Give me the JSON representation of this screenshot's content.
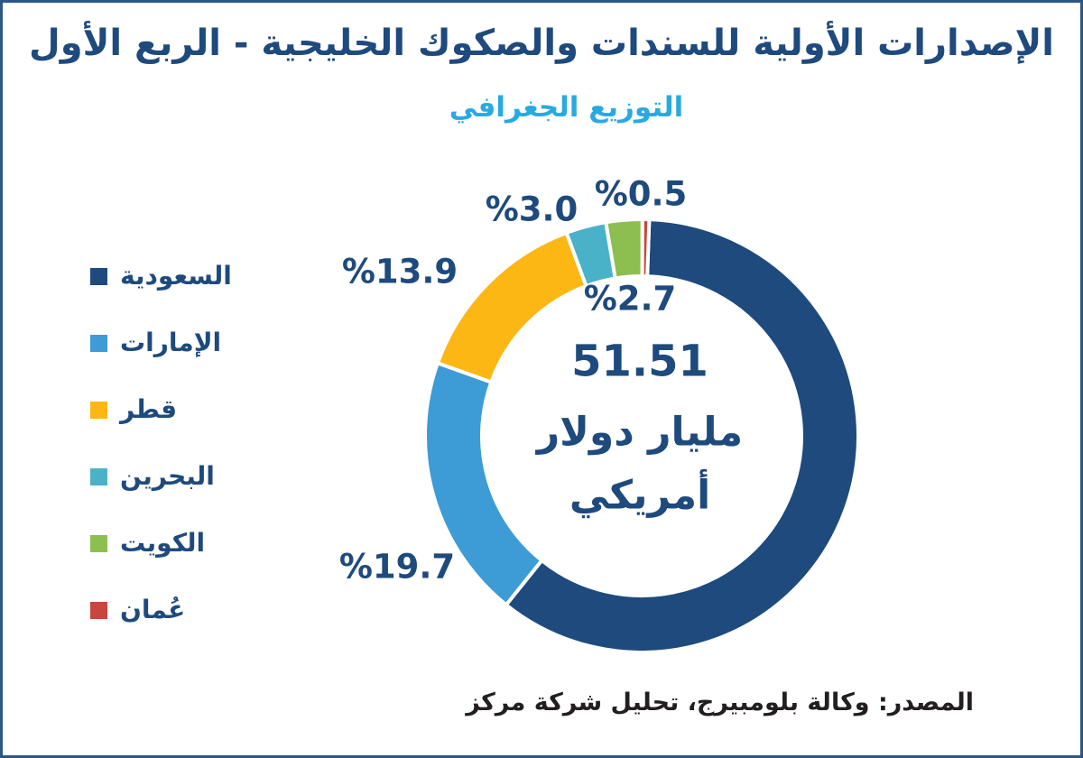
{
  "header": {
    "title": "الإصدارات الأولية للسندات والصكوك الخليجية - الربع الأول",
    "subtitle": "التوزيع الجغرافي"
  },
  "colors": {
    "title": "#1e4a7d",
    "subtitle": "#29a9e1",
    "percent_labels": "#1e4a7d",
    "frame_border": "#2b5685",
    "source_text": "#231f20",
    "slice_gap": "#ffffff"
  },
  "chart_data": {
    "type": "pie",
    "variant": "donut",
    "title": "الإصدارات الأولية للسندات والصكوك الخليجية - الربع الأول",
    "subtitle": "التوزيع الجغرافي",
    "unit": "percent",
    "legend_position": "left",
    "clockwise": true,
    "start_angle_deg": 2,
    "slices": [
      {
        "name": "السعودية",
        "name_en": "saudi-arabia",
        "value": 60.2,
        "label": "",
        "label_visible": false,
        "color": "#1e4a7d"
      },
      {
        "name": "الإمارات",
        "name_en": "uae",
        "value": 19.7,
        "label": "%19.7",
        "label_visible": true,
        "color": "#3d9bd5"
      },
      {
        "name": "قطر",
        "name_en": "qatar",
        "value": 13.9,
        "label": "%13.9",
        "label_visible": true,
        "color": "#fdb714"
      },
      {
        "name": "البحرين",
        "name_en": "bahrain",
        "value": 3.0,
        "label": "%3.0",
        "label_visible": true,
        "color": "#4ab2c8"
      },
      {
        "name": "الكويت",
        "name_en": "kuwait",
        "value": 2.7,
        "label": "%2.7",
        "label_visible": true,
        "color": "#8dbe50"
      },
      {
        "name": "عُمان",
        "name_en": "oman",
        "value": 0.5,
        "label": "%0.5",
        "label_visible": true,
        "color": "#c7463e"
      }
    ],
    "center_text": {
      "value": "51.51",
      "line2": "مليار دولار",
      "line3": "أمريكي"
    }
  },
  "source": {
    "text": "المصدر: وكالة بلومبيرج، تحليل شركة مركز"
  }
}
